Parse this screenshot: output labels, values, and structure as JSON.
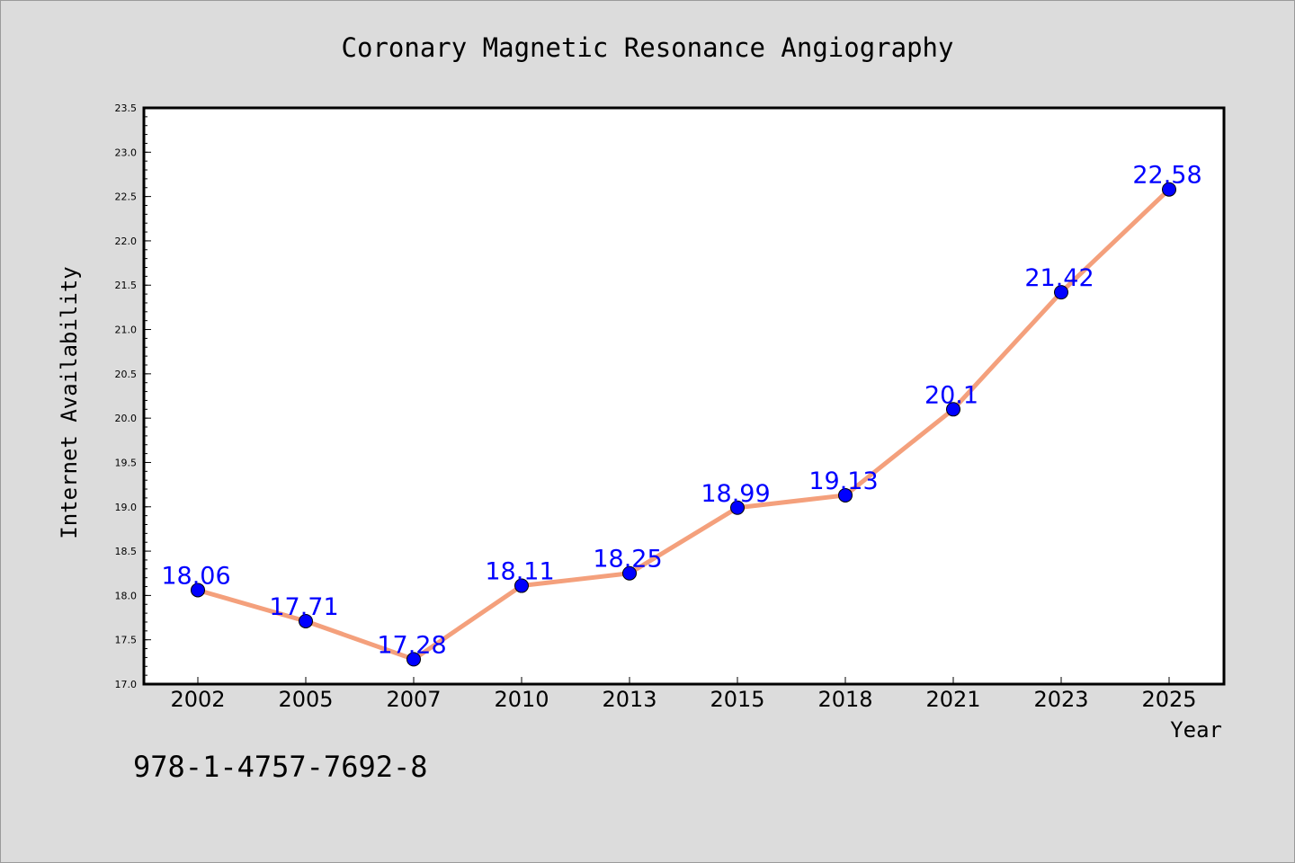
{
  "chart_data": {
    "type": "line",
    "title": "Coronary Magnetic Resonance Angiography",
    "xlabel": "Year",
    "ylabel": "Internet Availability",
    "categories": [
      "2002",
      "2005",
      "2007",
      "2010",
      "2013",
      "2015",
      "2018",
      "2021",
      "2023",
      "2025"
    ],
    "series": [
      {
        "values": [
          18.06,
          17.71,
          17.28,
          18.11,
          18.25,
          18.99,
          19.13,
          20.1,
          21.42,
          22.58
        ],
        "data_labels": [
          "18.06",
          "17.71",
          "17.28",
          "18.11",
          "18.25",
          "18.99",
          "19.13",
          "20.1",
          "21.42",
          "22.58"
        ]
      }
    ],
    "ylim": [
      17.0,
      23.5
    ],
    "yticks": [
      "17.0",
      "17.5",
      "18.0",
      "18.5",
      "19.0",
      "19.5",
      "20.0",
      "20.5",
      "21.0",
      "21.5",
      "22.0",
      "22.5",
      "23.0",
      "23.5"
    ],
    "grid": false,
    "colors": {
      "line": "#f4a07c",
      "marker": "#0000ff",
      "label": "#0000ff",
      "background": "#dcdcdc",
      "plot_background": "#ffffff"
    }
  },
  "annotation": "978-1-4757-7692-8"
}
